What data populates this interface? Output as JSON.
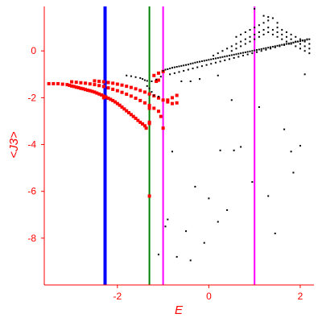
{
  "chart_data": {
    "type": "scatter",
    "xlabel": "E",
    "ylabel": "<J3>",
    "xlim": [
      -3.6,
      2.3
    ],
    "ylim": [
      -10.0,
      1.9
    ],
    "x_ticks": [
      -2,
      0,
      2
    ],
    "y_ticks": [
      0,
      -2,
      -4,
      -6,
      -8
    ],
    "grid": false,
    "colors": {
      "axes": "#ff0000",
      "black_points": "#000000",
      "red_points": "#ff0000",
      "blue_line": "#0000ff",
      "green_line": "#008000",
      "magenta_lines": "#ff00ff"
    },
    "vertical_lines": [
      {
        "x": -2.27,
        "color": "#0000ff"
      },
      {
        "x": -1.3,
        "color": "#008000"
      },
      {
        "x": -1.0,
        "color": "#ff00ff"
      },
      {
        "x": 1.0,
        "color": "#ff00ff"
      }
    ],
    "series": [
      {
        "color": "#ff0000",
        "points": [
          [
            -3.5,
            -1.4
          ],
          [
            -3.4,
            -1.4
          ],
          [
            -3.3,
            -1.4
          ],
          [
            -3.2,
            -1.42
          ],
          [
            -3.1,
            -1.44
          ],
          [
            -3.05,
            -1.47
          ],
          [
            -3.0,
            -1.5
          ],
          [
            -2.95,
            -1.52
          ],
          [
            -2.9,
            -1.55
          ],
          [
            -2.85,
            -1.57
          ],
          [
            -2.8,
            -1.6
          ],
          [
            -2.75,
            -1.62
          ],
          [
            -2.7,
            -1.65
          ],
          [
            -2.65,
            -1.68
          ],
          [
            -2.6,
            -1.7
          ],
          [
            -2.55,
            -1.73
          ],
          [
            -2.5,
            -1.76
          ],
          [
            -2.45,
            -1.8
          ],
          [
            -2.4,
            -1.84
          ],
          [
            -2.35,
            -1.88
          ],
          [
            -2.3,
            -1.93
          ],
          [
            -2.25,
            -1.97
          ],
          [
            -2.2,
            -2.02
          ],
          [
            -2.15,
            -2.07
          ],
          [
            -2.1,
            -2.12
          ],
          [
            -2.05,
            -2.18
          ],
          [
            -2.0,
            -2.25
          ],
          [
            -1.95,
            -2.32
          ],
          [
            -1.9,
            -2.4
          ],
          [
            -1.85,
            -2.48
          ],
          [
            -1.8,
            -2.56
          ],
          [
            -1.75,
            -2.64
          ],
          [
            -1.7,
            -2.72
          ],
          [
            -1.65,
            -2.8
          ],
          [
            -1.6,
            -2.88
          ],
          [
            -1.55,
            -2.97
          ],
          [
            -1.5,
            -3.05
          ],
          [
            -1.45,
            -3.12
          ],
          [
            -1.4,
            -3.2
          ],
          [
            -1.37,
            -3.3
          ],
          [
            -3.0,
            -1.32
          ],
          [
            -2.9,
            -1.34
          ],
          [
            -2.8,
            -1.36
          ],
          [
            -2.7,
            -1.38
          ],
          [
            -2.6,
            -1.41
          ],
          [
            -2.5,
            -1.44
          ],
          [
            -2.4,
            -1.48
          ],
          [
            -2.3,
            -1.52
          ],
          [
            -2.2,
            -1.58
          ],
          [
            -2.1,
            -1.64
          ],
          [
            -2.0,
            -1.7
          ],
          [
            -1.9,
            -1.77
          ],
          [
            -1.8,
            -1.85
          ],
          [
            -1.7,
            -1.93
          ],
          [
            -1.6,
            -2.02
          ],
          [
            -1.5,
            -2.12
          ],
          [
            -1.4,
            -2.22
          ],
          [
            -1.3,
            -2.33
          ],
          [
            -1.2,
            -2.45
          ],
          [
            -1.1,
            -2.58
          ],
          [
            -2.5,
            -1.28
          ],
          [
            -2.4,
            -1.3
          ],
          [
            -2.3,
            -1.32
          ],
          [
            -2.2,
            -1.35
          ],
          [
            -2.1,
            -1.38
          ],
          [
            -2.0,
            -1.42
          ],
          [
            -1.9,
            -1.46
          ],
          [
            -1.8,
            -1.51
          ],
          [
            -1.7,
            -1.56
          ],
          [
            -1.6,
            -1.62
          ],
          [
            -1.5,
            -1.69
          ],
          [
            -1.4,
            -1.76
          ],
          [
            -1.3,
            -1.84
          ],
          [
            -1.2,
            -1.92
          ],
          [
            -1.1,
            -2.01
          ],
          [
            -1.0,
            -2.1
          ],
          [
            -0.9,
            -2.18
          ],
          [
            -0.8,
            -2.25
          ],
          [
            -0.7,
            -2.22
          ],
          [
            -1.3,
            -2.45
          ],
          [
            -1.3,
            -3.05
          ],
          [
            -1.3,
            -6.2
          ],
          [
            -1.2,
            -1.05
          ],
          [
            -1.1,
            -0.95
          ],
          [
            -1.0,
            -0.88
          ],
          [
            -1.15,
            -1.3
          ],
          [
            -1.1,
            -1.25
          ],
          [
            -1.05,
            -2.8
          ],
          [
            -1.0,
            -3.3
          ],
          [
            -0.9,
            -2.1
          ],
          [
            -0.8,
            -2.0
          ],
          [
            -0.7,
            -1.9
          ],
          [
            -2.3,
            -2.0
          ],
          [
            -1.3,
            -3.1
          ]
        ]
      },
      {
        "color": "#000000",
        "points": [
          [
            -1.8,
            -1.05
          ],
          [
            -1.7,
            -1.08
          ],
          [
            -1.6,
            -1.12
          ],
          [
            -1.5,
            -1.16
          ],
          [
            -1.45,
            -1.2
          ],
          [
            -1.4,
            -1.25
          ],
          [
            -1.35,
            -1.28
          ],
          [
            -1.25,
            -1.3
          ],
          [
            -1.15,
            -1.22
          ],
          [
            -1.05,
            -1.1
          ],
          [
            -1.35,
            -1.5
          ],
          [
            -1.3,
            -1.6
          ],
          [
            -1.25,
            -1.75
          ],
          [
            -1.2,
            -1.9
          ],
          [
            -1.1,
            -1.95
          ],
          [
            -1.0,
            -0.85
          ],
          [
            -0.95,
            -0.8
          ],
          [
            -0.9,
            -0.78
          ],
          [
            -0.85,
            -0.75
          ],
          [
            -0.8,
            -0.72
          ],
          [
            -0.75,
            -0.7
          ],
          [
            -0.7,
            -0.68
          ],
          [
            -0.65,
            -0.66
          ],
          [
            -0.6,
            -0.64
          ],
          [
            -0.55,
            -0.62
          ],
          [
            -0.5,
            -0.6
          ],
          [
            -0.45,
            -0.58
          ],
          [
            -0.4,
            -0.55
          ],
          [
            -0.35,
            -0.53
          ],
          [
            -0.3,
            -0.5
          ],
          [
            -0.25,
            -0.48
          ],
          [
            -0.2,
            -0.46
          ],
          [
            -0.15,
            -0.44
          ],
          [
            -0.1,
            -0.42
          ],
          [
            -0.05,
            -0.4
          ],
          [
            0.0,
            -0.38
          ],
          [
            0.05,
            -0.36
          ],
          [
            0.1,
            -0.34
          ],
          [
            0.15,
            -0.32
          ],
          [
            0.2,
            -0.3
          ],
          [
            0.25,
            -0.28
          ],
          [
            0.3,
            -0.26
          ],
          [
            0.35,
            -0.24
          ],
          [
            0.4,
            -0.22
          ],
          [
            0.45,
            -0.2
          ],
          [
            0.5,
            -0.18
          ],
          [
            0.55,
            -0.16
          ],
          [
            0.6,
            -0.14
          ],
          [
            0.65,
            -0.12
          ],
          [
            0.7,
            -0.1
          ],
          [
            0.75,
            -0.08
          ],
          [
            0.8,
            -0.06
          ],
          [
            0.85,
            -0.04
          ],
          [
            0.9,
            -0.02
          ],
          [
            0.95,
            0.0
          ],
          [
            1.0,
            0.02
          ],
          [
            1.05,
            0.04
          ],
          [
            1.1,
            0.06
          ],
          [
            1.15,
            0.08
          ],
          [
            1.2,
            0.1
          ],
          [
            1.25,
            0.12
          ],
          [
            1.3,
            0.14
          ],
          [
            1.35,
            0.16
          ],
          [
            1.4,
            0.18
          ],
          [
            1.45,
            0.2
          ],
          [
            1.5,
            0.22
          ],
          [
            1.55,
            0.24
          ],
          [
            1.6,
            0.26
          ],
          [
            1.65,
            0.28
          ],
          [
            1.7,
            0.3
          ],
          [
            1.75,
            0.32
          ],
          [
            1.8,
            0.34
          ],
          [
            1.85,
            0.36
          ],
          [
            1.9,
            0.38
          ],
          [
            1.95,
            0.4
          ],
          [
            2.0,
            0.42
          ],
          [
            2.05,
            0.44
          ],
          [
            2.1,
            0.46
          ],
          [
            2.15,
            0.48
          ],
          [
            2.2,
            0.5
          ],
          [
            -0.85,
            -1.0
          ],
          [
            -0.75,
            -0.95
          ],
          [
            -0.65,
            -0.9
          ],
          [
            -0.55,
            -0.85
          ],
          [
            -0.45,
            -0.8
          ],
          [
            -0.35,
            -0.75
          ],
          [
            -0.25,
            -0.7
          ],
          [
            -0.15,
            -0.65
          ],
          [
            -0.05,
            -0.6
          ],
          [
            0.05,
            -0.55
          ],
          [
            0.15,
            -0.5
          ],
          [
            0.25,
            -0.45
          ],
          [
            0.35,
            -0.4
          ],
          [
            0.45,
            -0.35
          ],
          [
            0.55,
            -0.3
          ],
          [
            0.65,
            -0.25
          ],
          [
            0.75,
            -0.2
          ],
          [
            0.85,
            -0.15
          ],
          [
            0.95,
            -0.1
          ],
          [
            1.05,
            -0.05
          ],
          [
            1.15,
            0.0
          ],
          [
            1.25,
            0.05
          ],
          [
            1.35,
            0.1
          ],
          [
            1.45,
            0.15
          ],
          [
            1.55,
            0.2
          ],
          [
            1.65,
            0.25
          ],
          [
            1.75,
            0.3
          ],
          [
            1.85,
            0.35
          ],
          [
            1.95,
            0.4
          ],
          [
            2.05,
            0.45
          ],
          [
            2.15,
            0.5
          ],
          [
            0.1,
            -0.2
          ],
          [
            0.2,
            -0.1
          ],
          [
            0.3,
            0.0
          ],
          [
            0.4,
            0.1
          ],
          [
            0.5,
            0.2
          ],
          [
            0.6,
            0.3
          ],
          [
            0.7,
            0.4
          ],
          [
            0.8,
            0.5
          ],
          [
            0.9,
            0.6
          ],
          [
            1.0,
            0.7
          ],
          [
            1.1,
            0.8
          ],
          [
            1.2,
            0.9
          ],
          [
            1.3,
            1.0
          ],
          [
            1.4,
            0.9
          ],
          [
            1.5,
            0.8
          ],
          [
            1.6,
            0.7
          ],
          [
            1.7,
            0.6
          ],
          [
            1.8,
            0.5
          ],
          [
            1.9,
            0.4
          ],
          [
            2.0,
            0.3
          ],
          [
            2.1,
            0.2
          ],
          [
            2.2,
            0.1
          ],
          [
            0.6,
            0.6
          ],
          [
            0.7,
            0.7
          ],
          [
            0.8,
            0.8
          ],
          [
            0.9,
            0.9
          ],
          [
            1.0,
            1.0
          ],
          [
            1.1,
            1.1
          ],
          [
            1.2,
            1.2
          ],
          [
            1.3,
            1.3
          ],
          [
            1.4,
            1.4
          ],
          [
            1.5,
            1.0
          ],
          [
            1.6,
            0.9
          ],
          [
            1.7,
            0.8
          ],
          [
            1.8,
            0.7
          ],
          [
            1.9,
            0.6
          ],
          [
            2.0,
            0.5
          ],
          [
            2.1,
            0.4
          ],
          [
            2.2,
            0.3
          ],
          [
            0.5,
            0.0
          ],
          [
            0.6,
            0.1
          ],
          [
            0.7,
            0.2
          ],
          [
            0.8,
            0.3
          ],
          [
            0.9,
            0.4
          ],
          [
            1.0,
            0.5
          ],
          [
            1.1,
            0.6
          ],
          [
            1.2,
            0.7
          ],
          [
            1.3,
            0.8
          ],
          [
            1.4,
            0.7
          ],
          [
            1.5,
            0.6
          ],
          [
            1.6,
            0.5
          ],
          [
            1.7,
            0.4
          ],
          [
            1.8,
            0.3
          ],
          [
            1.9,
            0.2
          ],
          [
            2.0,
            0.1
          ],
          [
            2.1,
            0.0
          ],
          [
            2.2,
            -0.1
          ],
          [
            1.0,
            1.8
          ],
          [
            1.2,
            1.5
          ],
          [
            1.3,
            1.45
          ],
          [
            1.5,
            1.2
          ],
          [
            -0.6,
            -1.3
          ],
          [
            -0.4,
            -1.3
          ],
          [
            -0.2,
            -1.2
          ],
          [
            0.2,
            -1.05
          ],
          [
            0.5,
            -2.1
          ],
          [
            1.1,
            -2.4
          ],
          [
            2.1,
            -1.0
          ],
          [
            -1.1,
            -8.7
          ],
          [
            -0.9,
            -7.2
          ],
          [
            -0.8,
            -4.3
          ],
          [
            -0.7,
            -8.8
          ],
          [
            -0.5,
            -7.7
          ],
          [
            -0.4,
            -8.95
          ],
          [
            -0.3,
            -5.8
          ],
          [
            -0.1,
            -8.2
          ],
          [
            0.0,
            -6.3
          ],
          [
            0.2,
            -7.3
          ],
          [
            0.25,
            -4.25
          ],
          [
            0.4,
            -6.8
          ],
          [
            0.55,
            -4.25
          ],
          [
            0.7,
            -4.1
          ],
          [
            0.95,
            -5.6
          ],
          [
            1.3,
            -6.2
          ],
          [
            1.45,
            -7.8
          ],
          [
            1.65,
            -3.35
          ],
          [
            1.85,
            -5.2
          ],
          [
            2.0,
            -4.05
          ],
          [
            1.8,
            -4.3
          ],
          [
            -0.95,
            -7.5
          ]
        ]
      }
    ]
  }
}
